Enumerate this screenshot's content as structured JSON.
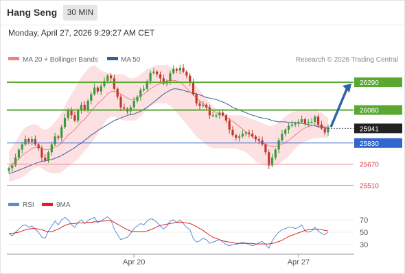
{
  "header": {
    "title": "Hang Seng",
    "timeframe": "30 MIN",
    "datetime": "Monday, April 27, 2026 9:29:27 AM CET"
  },
  "legend": {
    "ma20_label": "MA 20 + Bollinger Bands",
    "ma50_label": "MA 50",
    "rsi_label": "RSI",
    "rsi_ma_label": "9MA",
    "credit": "Research © 2026 Trading Central"
  },
  "colors": {
    "bull": "#3b9a3b",
    "bear": "#c0392b",
    "ma20": "#f08080",
    "ma50": "#35609c",
    "band": "#fbd5d8",
    "resistance": "#5aa832",
    "support": "#f08080",
    "pivot": "#3366cc",
    "arrow": "#2f62a8",
    "rsi": "#5b8bd6",
    "rsi_ma": "#e02020"
  },
  "chart_data": {
    "type": "candlestick",
    "instrument": "Hang Seng",
    "timeframe": "30 MIN",
    "x_tick_labels": [
      {
        "label": "Apr 20",
        "index": 38
      },
      {
        "label": "Apr 27",
        "index": 88
      }
    ],
    "y_range": [
      25435,
      26420
    ],
    "price_series": [
      25640,
      25660,
      25720,
      25780,
      25820,
      25860,
      25840,
      25860,
      25820,
      25790,
      25720,
      25700,
      25760,
      25820,
      25880,
      25870,
      25950,
      26020,
      26080,
      26040,
      26000,
      26080,
      26120,
      26080,
      26150,
      26200,
      26250,
      26220,
      26260,
      26300,
      26340,
      26320,
      26240,
      26180,
      26100,
      26090,
      26070,
      26100,
      26150,
      26180,
      26230,
      26240,
      26300,
      26360,
      26370,
      26350,
      26320,
      26280,
      26300,
      26360,
      26390,
      26380,
      26400,
      26370,
      26340,
      26290,
      26200,
      26130,
      26110,
      26120,
      26100,
      26040,
      26040,
      26040,
      26060,
      26040,
      26000,
      25930,
      25890,
      25870,
      25880,
      25900,
      25910,
      25900,
      25880,
      25860,
      25850,
      25820,
      25760,
      25660,
      25720,
      25780,
      25850,
      25900,
      25930,
      25960,
      25970,
      25980,
      25990,
      26010,
      25980,
      25990,
      25990,
      26030,
      25970,
      25940,
      25910,
      25950
    ],
    "ma20": [
      25650,
      25665,
      25690,
      25710,
      25735,
      25755,
      25770,
      25790,
      25795,
      25800,
      25790,
      25780,
      25780,
      25785,
      25800,
      25810,
      25830,
      25860,
      25890,
      25910,
      25930,
      25960,
      25990,
      26010,
      26040,
      26070,
      26100,
      26130,
      26150,
      26175,
      26200,
      26220,
      26220,
      26215,
      26200,
      26185,
      26170,
      26160,
      26160,
      26170,
      26185,
      26200,
      26220,
      26240,
      26255,
      26270,
      26280,
      26290,
      26300,
      26305,
      26305,
      26300,
      26290,
      26270,
      26245,
      26220,
      26195,
      26170,
      26150,
      26130,
      26110,
      26090,
      26075,
      26060,
      26050,
      26040,
      26025,
      26010,
      25995,
      25975,
      25955,
      25935,
      25915,
      25895,
      25880,
      25860,
      25845,
      25830,
      25820,
      25810,
      25805,
      25805,
      25810,
      25820,
      25835,
      25850,
      25870,
      25890,
      25910,
      25930,
      25945,
      25955,
      25960,
      25965,
      25965,
      25960,
      25955,
      25950
    ],
    "bb_upper": [
      25770,
      25800,
      25840,
      25880,
      25920,
      25950,
      25960,
      25970,
      25970,
      25960,
      25940,
      25930,
      25940,
      25960,
      25990,
      26020,
      26060,
      26110,
      26160,
      26200,
      26240,
      26290,
      26330,
      26360,
      26390,
      26410,
      26420,
      26400,
      26380,
      26370,
      26360,
      26350,
      26350,
      26350,
      26350,
      26350,
      26330,
      26320,
      26320,
      26330,
      26350,
      26370,
      26390,
      26400,
      26410,
      26420,
      26420,
      26420,
      26420,
      26410,
      26400,
      26390,
      26380,
      26370,
      26350,
      26320,
      26290,
      26260,
      26230,
      26200,
      26170,
      26140,
      26110,
      26090,
      26070,
      26060,
      26050,
      26040,
      26040,
      26040,
      26040,
      26040,
      26030,
      26020,
      26010,
      26000,
      25990,
      25980,
      25970,
      25960,
      25960,
      25970,
      25990,
      26010,
      26030,
      26050,
      26060,
      26070,
      26075,
      26080,
      26080,
      26080,
      26080,
      26080,
      26070,
      26060,
      26040,
      26020
    ],
    "bb_lower": [
      25540,
      25540,
      25550,
      25560,
      25570,
      25590,
      25610,
      25630,
      25640,
      25650,
      25640,
      25620,
      25610,
      25600,
      25600,
      25600,
      25610,
      25630,
      25650,
      25670,
      25690,
      25710,
      25740,
      25770,
      25800,
      25830,
      25860,
      25900,
      25940,
      25980,
      26010,
      26030,
      26030,
      26020,
      26010,
      26000,
      26000,
      26000,
      26000,
      26010,
      26030,
      26060,
      26090,
      26110,
      26120,
      26130,
      26130,
      26130,
      26130,
      26110,
      26090,
      26060,
      26030,
      26000,
      25970,
      25940,
      25910,
      25880,
      25860,
      25840,
      25820,
      25800,
      25790,
      25790,
      25790,
      25790,
      25790,
      25790,
      25790,
      25790,
      25780,
      25770,
      25760,
      25740,
      25720,
      25690,
      25680,
      25670,
      25660,
      25660,
      25660,
      25660,
      25670,
      25690,
      25710,
      25730,
      25760,
      25790,
      25810,
      25830,
      25840,
      25850,
      25860,
      25870,
      25870,
      25870,
      25870,
      25870
    ],
    "ma50": [
      25600,
      25605,
      25615,
      25625,
      25635,
      25645,
      25655,
      25665,
      25675,
      25685,
      25690,
      25695,
      25700,
      25705,
      25715,
      25725,
      25735,
      25750,
      25765,
      25780,
      25795,
      25815,
      25830,
      25850,
      25870,
      25890,
      25905,
      25925,
      25940,
      25955,
      25970,
      25985,
      26000,
      26010,
      26020,
      26030,
      26040,
      26045,
      26050,
      26060,
      26070,
      26085,
      26100,
      26120,
      26140,
      26160,
      26180,
      26200,
      26215,
      26230,
      26240,
      26240,
      26235,
      26230,
      26220,
      26215,
      26210,
      26200,
      26195,
      26185,
      26175,
      26170,
      26165,
      26160,
      26150,
      26140,
      26130,
      26115,
      26100,
      26090,
      26080,
      26070,
      26060,
      26050,
      26040,
      26035,
      26025,
      26020,
      26015,
      26010,
      26000,
      25995,
      25990,
      25990,
      25990,
      25985,
      25985,
      25985,
      25980,
      25980,
      25975,
      25970,
      25965,
      25960,
      25955,
      25950,
      25945,
      25940
    ],
    "levels": [
      {
        "label": "26290",
        "type": "resistance",
        "value": 26290
      },
      {
        "label": "26080",
        "type": "resistance",
        "value": 26080
      },
      {
        "label": "25941",
        "type": "last",
        "value": 25941
      },
      {
        "label": "25830",
        "type": "pivot",
        "value": 25830
      },
      {
        "label": "25670",
        "type": "support",
        "value": 25670
      },
      {
        "label": "25510",
        "type": "support",
        "value": 25510
      }
    ],
    "forecast_arrow": {
      "from_value": 25941,
      "to_value": 26290,
      "direction": "up"
    },
    "rsi": {
      "y_range": [
        20,
        80
      ],
      "ticks": [
        "70",
        "50",
        "30"
      ],
      "rsi": [
        48,
        44,
        50,
        55,
        60,
        62,
        58,
        60,
        55,
        50,
        42,
        40,
        52,
        60,
        68,
        62,
        70,
        74,
        70,
        62,
        58,
        66,
        70,
        64,
        69,
        72,
        74,
        66,
        68,
        72,
        75,
        70,
        55,
        46,
        38,
        40,
        42,
        48,
        56,
        60,
        64,
        62,
        68,
        72,
        70,
        66,
        60,
        55,
        60,
        68,
        70,
        66,
        70,
        64,
        58,
        54,
        40,
        34,
        36,
        40,
        38,
        32,
        34,
        36,
        38,
        34,
        30,
        28,
        30,
        30,
        32,
        34,
        32,
        30,
        28,
        30,
        33,
        35,
        30,
        24,
        36,
        44,
        50,
        54,
        56,
        58,
        58,
        56,
        58,
        62,
        52,
        50,
        52,
        58,
        52,
        48,
        46,
        50
      ],
      "ma9": [
        48,
        48,
        49,
        50,
        52,
        54,
        55,
        56,
        56,
        55,
        54,
        52,
        51,
        51,
        53,
        55,
        58,
        61,
        63,
        64,
        64,
        65,
        65,
        65,
        66,
        66,
        67,
        67,
        68,
        68,
        69,
        69,
        66,
        63,
        60,
        57,
        54,
        52,
        51,
        51,
        51,
        51,
        52,
        54,
        56,
        59,
        61,
        62,
        63,
        64,
        65,
        66,
        66,
        66,
        65,
        64,
        62,
        59,
        56,
        53,
        49,
        45,
        42,
        40,
        38,
        36,
        35,
        34,
        33,
        32,
        32,
        32,
        32,
        32,
        32,
        31,
        31,
        31,
        31,
        31,
        32,
        33,
        35,
        37,
        40,
        43,
        45,
        47,
        49,
        51,
        53,
        54,
        55,
        55,
        55,
        54,
        53,
        52
      ]
    }
  }
}
